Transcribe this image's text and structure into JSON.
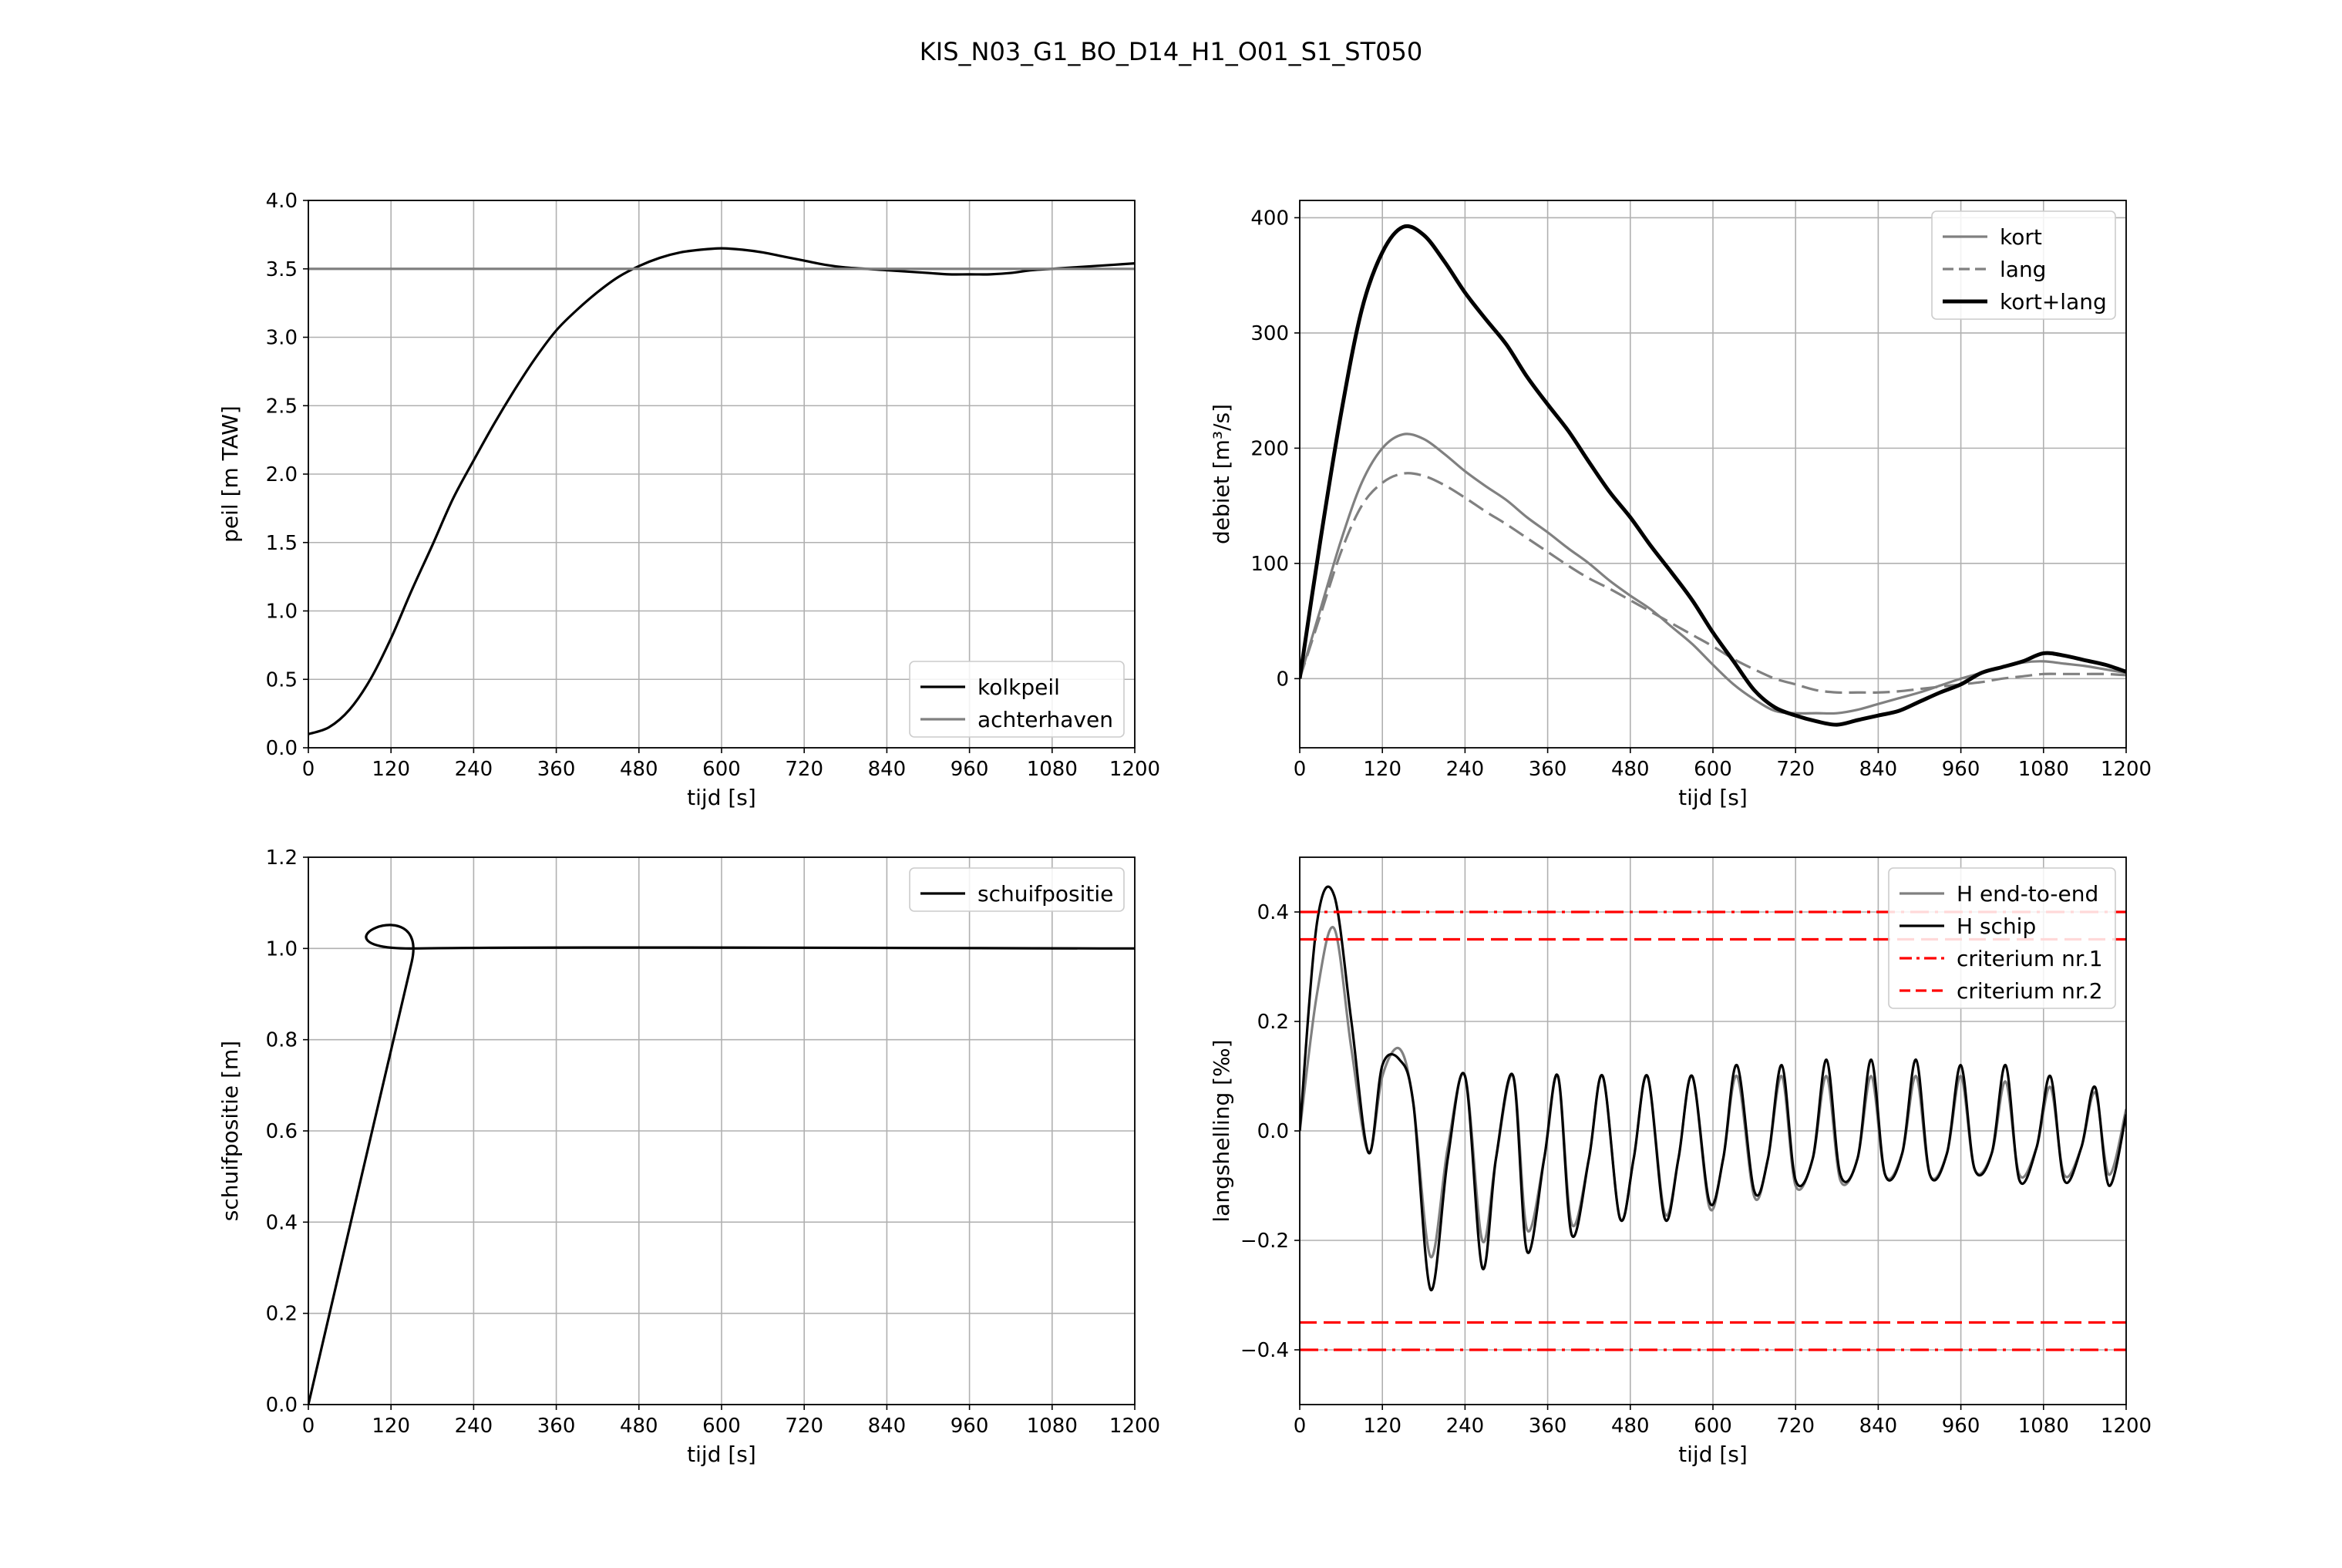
{
  "figure": {
    "title": "KIS_N03_G1_BO_D14_H1_O01_S1_ST050"
  },
  "chart_data": [
    {
      "type": "line",
      "xlabel": "tijd [s]",
      "ylabel": "peil [m TAW]",
      "xlim": [
        0,
        1200
      ],
      "ylim": [
        0,
        4
      ],
      "xticks": [
        0,
        120,
        240,
        360,
        480,
        600,
        720,
        840,
        960,
        1080,
        1200
      ],
      "yticks": [
        "0.0",
        "0.5",
        "1.0",
        "1.5",
        "2.0",
        "2.5",
        "3.0",
        "3.5",
        "4.0"
      ],
      "grid": true,
      "legend_position": "lower right",
      "series": [
        {
          "name": "kolkpeil",
          "color": "#000000",
          "style": "solid",
          "width": "thin",
          "x": [
            0,
            30,
            60,
            90,
            120,
            150,
            180,
            210,
            240,
            270,
            300,
            330,
            360,
            390,
            420,
            450,
            480,
            510,
            540,
            570,
            600,
            630,
            660,
            690,
            720,
            750,
            780,
            810,
            840,
            870,
            900,
            930,
            960,
            990,
            1020,
            1050,
            1080,
            1110,
            1140,
            1170,
            1200
          ],
          "y": [
            0.1,
            0.15,
            0.28,
            0.5,
            0.8,
            1.15,
            1.48,
            1.82,
            2.1,
            2.37,
            2.62,
            2.85,
            3.05,
            3.2,
            3.33,
            3.44,
            3.52,
            3.58,
            3.62,
            3.64,
            3.65,
            3.64,
            3.62,
            3.59,
            3.56,
            3.53,
            3.51,
            3.5,
            3.49,
            3.48,
            3.47,
            3.46,
            3.46,
            3.46,
            3.47,
            3.49,
            3.5,
            3.51,
            3.52,
            3.53,
            3.54
          ]
        },
        {
          "name": "achterhaven",
          "color": "#808080",
          "style": "solid",
          "width": "thin",
          "x": [
            0,
            1200
          ],
          "y": [
            3.5,
            3.5
          ]
        }
      ]
    },
    {
      "type": "line",
      "xlabel": "tijd [s]",
      "ylabel": "debiet [m³/s]",
      "xlim": [
        0,
        1200
      ],
      "ylim": [
        -60,
        415
      ],
      "xticks": [
        0,
        120,
        240,
        360,
        480,
        600,
        720,
        840,
        960,
        1080,
        1200
      ],
      "yticks": [
        "0",
        "100",
        "200",
        "300",
        "400"
      ],
      "ytick_values": [
        0,
        100,
        200,
        300,
        400
      ],
      "grid": true,
      "legend_position": "upper right",
      "series": [
        {
          "name": "kort",
          "color": "#808080",
          "style": "solid",
          "width": "thin",
          "x": [
            0,
            30,
            60,
            90,
            120,
            150,
            180,
            210,
            240,
            270,
            300,
            330,
            360,
            390,
            420,
            450,
            480,
            510,
            540,
            570,
            600,
            630,
            660,
            690,
            720,
            750,
            780,
            810,
            840,
            870,
            900,
            930,
            960,
            990,
            1020,
            1050,
            1080,
            1110,
            1140,
            1170,
            1200
          ],
          "y": [
            0,
            60,
            120,
            170,
            200,
            212,
            208,
            195,
            180,
            167,
            155,
            140,
            127,
            113,
            100,
            85,
            72,
            60,
            45,
            30,
            12,
            -5,
            -18,
            -28,
            -30,
            -30,
            -30,
            -27,
            -22,
            -17,
            -12,
            -6,
            0,
            5,
            10,
            14,
            15,
            13,
            11,
            8,
            5
          ]
        },
        {
          "name": "lang",
          "color": "#808080",
          "style": "dashed",
          "width": "thin",
          "x": [
            0,
            30,
            60,
            90,
            120,
            150,
            180,
            210,
            240,
            270,
            300,
            330,
            360,
            390,
            420,
            450,
            480,
            510,
            540,
            570,
            600,
            630,
            660,
            690,
            720,
            750,
            780,
            810,
            840,
            870,
            900,
            930,
            960,
            990,
            1020,
            1050,
            1080,
            1110,
            1140,
            1170,
            1200
          ],
          "y": [
            0,
            55,
            110,
            150,
            170,
            178,
            176,
            168,
            157,
            145,
            134,
            122,
            110,
            98,
            87,
            78,
            68,
            58,
            48,
            38,
            28,
            17,
            8,
            0,
            -5,
            -10,
            -12,
            -12,
            -12,
            -11,
            -9,
            -7,
            -5,
            -3,
            0,
            2,
            4,
            4,
            4,
            4,
            3
          ]
        },
        {
          "name": "kort+lang",
          "color": "#000000",
          "style": "solid",
          "width": "thick",
          "x": [
            0,
            30,
            60,
            90,
            120,
            150,
            180,
            210,
            240,
            270,
            300,
            330,
            360,
            390,
            420,
            450,
            480,
            510,
            540,
            570,
            600,
            630,
            660,
            690,
            720,
            750,
            780,
            810,
            840,
            870,
            900,
            930,
            960,
            990,
            1020,
            1050,
            1080,
            1110,
            1140,
            1170,
            1200
          ],
          "y": [
            0,
            120,
            230,
            320,
            370,
            392,
            385,
            362,
            335,
            312,
            290,
            262,
            238,
            215,
            188,
            162,
            140,
            115,
            92,
            68,
            40,
            15,
            -10,
            -25,
            -32,
            -37,
            -40,
            -36,
            -32,
            -28,
            -20,
            -12,
            -5,
            5,
            10,
            15,
            22,
            20,
            16,
            12,
            6
          ]
        }
      ]
    },
    {
      "type": "line",
      "xlabel": "tijd [s]",
      "ylabel": "schuifpositie [m]",
      "xlim": [
        0,
        1200
      ],
      "ylim": [
        0,
        1.2
      ],
      "xticks": [
        0,
        120,
        240,
        360,
        480,
        600,
        720,
        840,
        960,
        1080,
        1200
      ],
      "yticks": [
        "0.0",
        "0.2",
        "0.4",
        "0.6",
        "0.8",
        "1.0",
        "1.2"
      ],
      "ytick_values": [
        0,
        0.2,
        0.4,
        0.6,
        0.8,
        1.0,
        1.2
      ],
      "grid": true,
      "legend_position": "upper right",
      "series": [
        {
          "name": "schuifpositie",
          "color": "#000000",
          "style": "solid",
          "width": "thin",
          "x": [
            0,
            150,
            158,
            1200
          ],
          "y": [
            0.0,
            0.97,
            1.0,
            1.0
          ]
        }
      ]
    },
    {
      "type": "line",
      "xlabel": "tijd [s]",
      "ylabel": "langshelling [‰]",
      "xlim": [
        0,
        1200
      ],
      "ylim": [
        -0.5,
        0.5
      ],
      "xticks": [
        0,
        120,
        240,
        360,
        480,
        600,
        720,
        840,
        960,
        1080,
        1200
      ],
      "yticks": [
        "−0.4",
        "−0.2",
        "0.0",
        "0.2",
        "0.4"
      ],
      "ytick_values": [
        -0.4,
        -0.2,
        0.0,
        0.2,
        0.4
      ],
      "grid": true,
      "legend_position": "upper right",
      "series": [
        {
          "name": "H end-to-end",
          "color": "#808080",
          "style": "solid",
          "width": "thin",
          "x": [
            0,
            25,
            50,
            75,
            100,
            120,
            145,
            165,
            190,
            215,
            240,
            265,
            285,
            310,
            330,
            355,
            375,
            395,
            420,
            440,
            465,
            485,
            505,
            530,
            550,
            570,
            595,
            615,
            635,
            660,
            680,
            700,
            720,
            745,
            765,
            785,
            810,
            830,
            850,
            875,
            895,
            915,
            940,
            960,
            980,
            1005,
            1025,
            1045,
            1070,
            1090,
            1110,
            1135,
            1155,
            1175,
            1200
          ],
          "x_note": "",
          "y": [
            0,
            0.25,
            0.37,
            0.15,
            -0.04,
            0.1,
            0.15,
            0.05,
            -0.23,
            -0.03,
            0.1,
            -0.2,
            -0.05,
            0.1,
            -0.18,
            -0.05,
            0.1,
            -0.17,
            -0.05,
            0.1,
            -0.16,
            -0.05,
            0.1,
            -0.15,
            -0.05,
            0.1,
            -0.14,
            -0.05,
            0.1,
            -0.12,
            -0.05,
            0.1,
            -0.1,
            -0.05,
            0.1,
            -0.09,
            -0.05,
            0.1,
            -0.08,
            -0.04,
            0.1,
            -0.08,
            -0.04,
            0.1,
            -0.07,
            -0.04,
            0.09,
            -0.08,
            -0.03,
            0.08,
            -0.08,
            -0.03,
            0.07,
            -0.08,
            0.04
          ]
        },
        {
          "name": "H schip",
          "color": "#000000",
          "style": "solid",
          "width": "thin",
          "y": [
            0,
            0.38,
            0.43,
            0.2,
            -0.04,
            0.12,
            0.13,
            0.05,
            -0.29,
            -0.05,
            0.1,
            -0.25,
            -0.05,
            0.1,
            -0.22,
            -0.05,
            0.1,
            -0.19,
            -0.05,
            0.1,
            -0.16,
            -0.05,
            0.1,
            -0.16,
            -0.05,
            0.1,
            -0.13,
            -0.05,
            0.12,
            -0.11,
            -0.05,
            0.12,
            -0.09,
            -0.05,
            0.13,
            -0.08,
            -0.05,
            0.13,
            -0.08,
            -0.04,
            0.13,
            -0.08,
            -0.04,
            0.12,
            -0.07,
            -0.04,
            0.12,
            -0.09,
            -0.03,
            0.1,
            -0.09,
            -0.03,
            0.08,
            -0.1,
            0.03
          ]
        },
        {
          "name": "criterium nr.1",
          "color": "#ff0000",
          "style": "dashdot",
          "width": "thin",
          "lines": [
            0.4,
            -0.4
          ]
        },
        {
          "name": "criterium nr.2",
          "color": "#ff0000",
          "style": "dashed",
          "width": "thin",
          "lines": [
            0.35,
            -0.35
          ]
        }
      ]
    }
  ]
}
